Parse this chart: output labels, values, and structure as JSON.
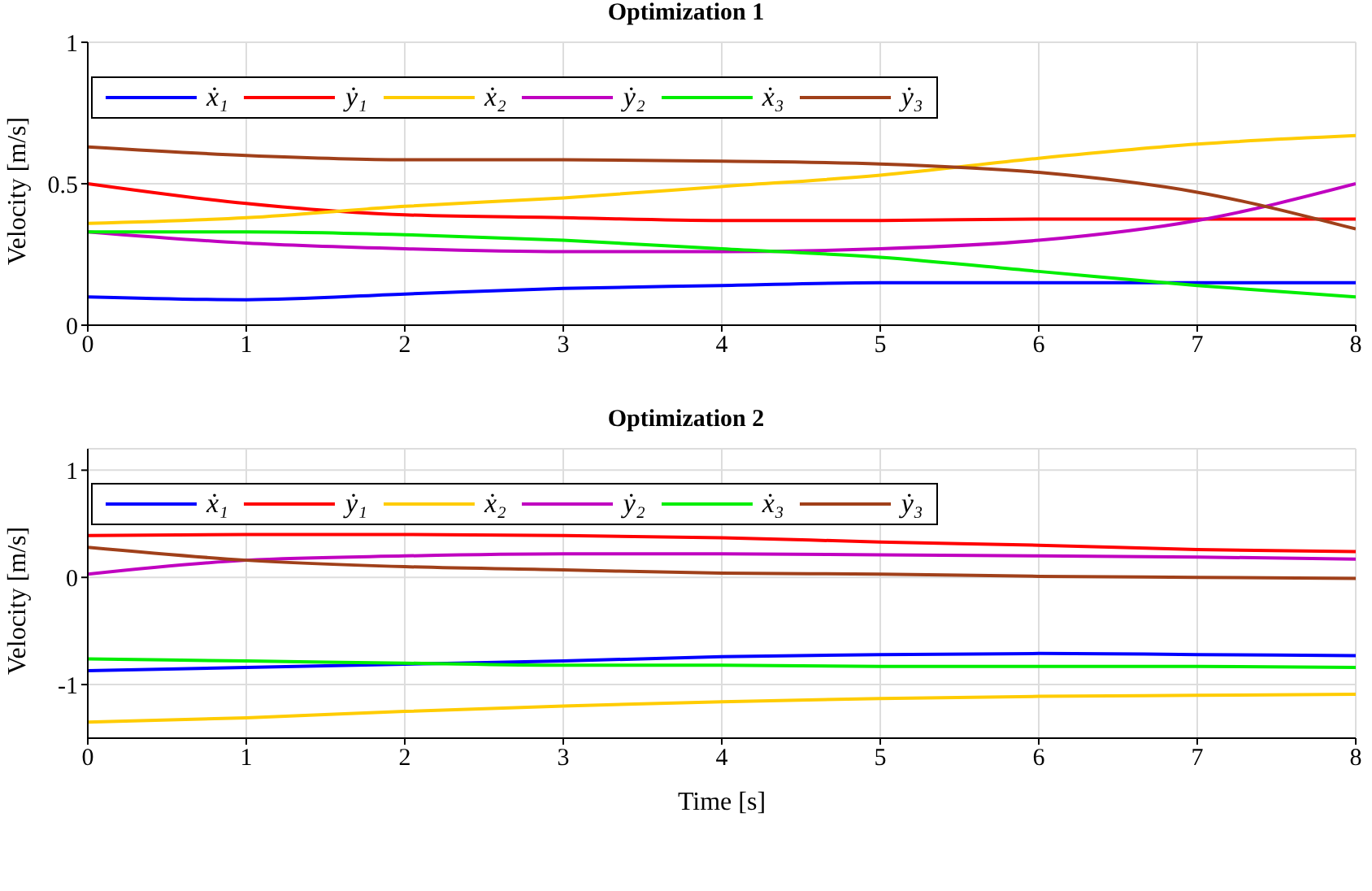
{
  "chart_data": [
    {
      "type": "line",
      "title": "Optimization 1",
      "ylabel": "Velocity [m/s]",
      "x": [
        0,
        1,
        2,
        3,
        4,
        5,
        6,
        7,
        8
      ],
      "xlim": [
        0,
        8
      ],
      "xticks": [
        0,
        1,
        2,
        3,
        4,
        5,
        6,
        7,
        8
      ],
      "ylim": [
        0,
        1
      ],
      "yticks": [
        0,
        0.5,
        1
      ],
      "grid": true,
      "legend": "top left",
      "marker": "none",
      "line_style": "solid",
      "series": [
        {
          "name": "ẋ₁",
          "color": "#0000ff",
          "values": [
            0.1,
            0.09,
            0.11,
            0.13,
            0.14,
            0.15,
            0.15,
            0.15,
            0.15
          ]
        },
        {
          "name": "ẏ₁",
          "color": "#ff0000",
          "values": [
            0.5,
            0.43,
            0.39,
            0.38,
            0.37,
            0.37,
            0.375,
            0.375,
            0.375
          ]
        },
        {
          "name": "ẋ₂",
          "color": "#ffcc00",
          "values": [
            0.36,
            0.38,
            0.42,
            0.45,
            0.49,
            0.53,
            0.59,
            0.64,
            0.67
          ]
        },
        {
          "name": "ẏ₂",
          "color": "#c000c0",
          "values": [
            0.33,
            0.29,
            0.27,
            0.26,
            0.26,
            0.27,
            0.3,
            0.37,
            0.5
          ]
        },
        {
          "name": "ẋ₃",
          "color": "#00ee00",
          "values": [
            0.33,
            0.33,
            0.32,
            0.3,
            0.27,
            0.24,
            0.19,
            0.14,
            0.1
          ]
        },
        {
          "name": "ẏ₃",
          "color": "#a0401a",
          "values": [
            0.63,
            0.6,
            0.585,
            0.585,
            0.58,
            0.57,
            0.54,
            0.47,
            0.34
          ]
        }
      ]
    },
    {
      "type": "line",
      "title": "Optimization 2",
      "xlabel": "Time [s]",
      "ylabel": "Velocity [m/s]",
      "x": [
        0,
        1,
        2,
        3,
        4,
        5,
        6,
        7,
        8
      ],
      "xlim": [
        0,
        8
      ],
      "xticks": [
        0,
        1,
        2,
        3,
        4,
        5,
        6,
        7,
        8
      ],
      "ylim": [
        -1.5,
        1.2
      ],
      "yticks": [
        -1,
        0,
        1
      ],
      "grid": true,
      "legend": "top left",
      "marker": "none",
      "line_style": "solid",
      "series": [
        {
          "name": "ẋ₁",
          "color": "#0000ff",
          "values": [
            -0.87,
            -0.84,
            -0.81,
            -0.78,
            -0.74,
            -0.72,
            -0.71,
            -0.72,
            -0.73
          ]
        },
        {
          "name": "ẏ₁",
          "color": "#ff0000",
          "values": [
            0.39,
            0.4,
            0.4,
            0.39,
            0.37,
            0.33,
            0.3,
            0.26,
            0.24
          ]
        },
        {
          "name": "ẋ₂",
          "color": "#ffcc00",
          "values": [
            -1.35,
            -1.31,
            -1.25,
            -1.2,
            -1.16,
            -1.13,
            -1.11,
            -1.1,
            -1.09
          ]
        },
        {
          "name": "ẏ₂",
          "color": "#c000c0",
          "values": [
            0.03,
            0.16,
            0.2,
            0.22,
            0.22,
            0.21,
            0.2,
            0.19,
            0.17
          ]
        },
        {
          "name": "ẋ₃",
          "color": "#00ee00",
          "values": [
            -0.76,
            -0.78,
            -0.8,
            -0.82,
            -0.82,
            -0.83,
            -0.83,
            -0.83,
            -0.84
          ]
        },
        {
          "name": "ẏ₃",
          "color": "#a0401a",
          "values": [
            0.28,
            0.16,
            0.1,
            0.07,
            0.04,
            0.03,
            0.01,
            0,
            -0.01
          ]
        }
      ]
    }
  ]
}
